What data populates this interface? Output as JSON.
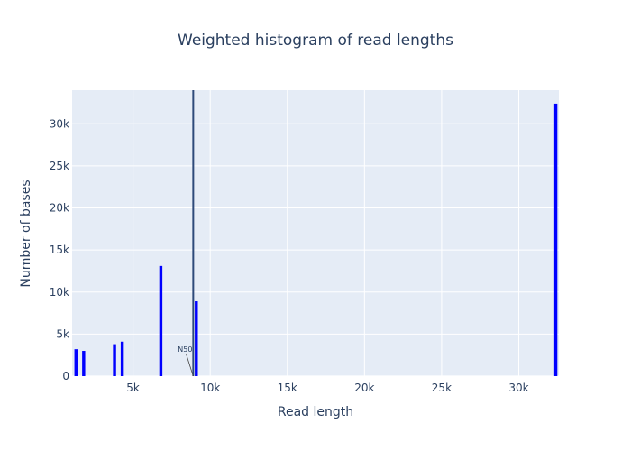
{
  "chart_data": {
    "type": "bar",
    "title": "Weighted histogram of read lengths",
    "xlabel": "Read length",
    "ylabel": "Number of bases",
    "xlim": [
      1050,
      32600
    ],
    "ylim": [
      0,
      34000
    ],
    "bin_width": 200,
    "x_ticks": [
      {
        "value": 5000,
        "label": "5k"
      },
      {
        "value": 10000,
        "label": "10k"
      },
      {
        "value": 15000,
        "label": "15k"
      },
      {
        "value": 20000,
        "label": "20k"
      },
      {
        "value": 25000,
        "label": "25k"
      },
      {
        "value": 30000,
        "label": "30k"
      }
    ],
    "y_ticks": [
      {
        "value": 0,
        "label": "0"
      },
      {
        "value": 5000,
        "label": "5k"
      },
      {
        "value": 10000,
        "label": "10k"
      },
      {
        "value": 15000,
        "label": "15k"
      },
      {
        "value": 20000,
        "label": "20k"
      },
      {
        "value": 25000,
        "label": "25k"
      },
      {
        "value": 30000,
        "label": "30k"
      }
    ],
    "series": [
      {
        "color": "#0000ff",
        "x": [
          1300,
          1800,
          3800,
          4300,
          6800,
          9100,
          32400
        ],
        "values": [
          3200,
          3000,
          3800,
          4100,
          13100,
          8900,
          32400
        ]
      }
    ],
    "vline": {
      "x": 8900,
      "color": "#2e4a7a"
    },
    "annotation": {
      "text": "N50",
      "x": 8900,
      "y": 0
    },
    "grid": true,
    "plot_background": "#e5ecf6"
  }
}
